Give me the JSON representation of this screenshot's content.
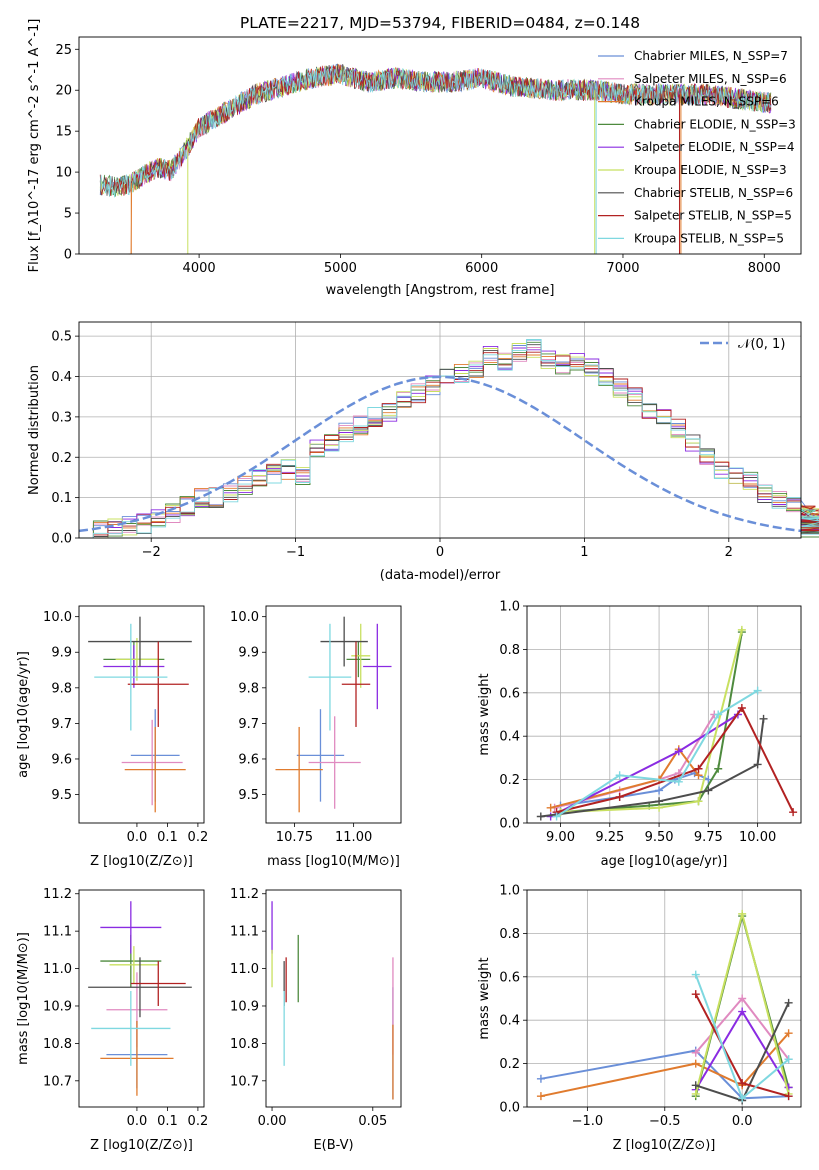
{
  "chart_data": [
    {
      "type": "line",
      "title": "PLATE=2217, MJD=53794, FIBERID=0484, z=0.148",
      "xlabel": "wavelength [Angstrom, rest frame]",
      "ylabel": "Flux [f_λ10^-17 erg cm^-2 s^-1 A^-1]",
      "xlim": [
        3150,
        8260
      ],
      "ylim": [
        0,
        26.5
      ],
      "xticks": [
        "4000",
        "5000",
        "6000",
        "7000",
        "8000"
      ],
      "yticks": [
        "0",
        "5",
        "10",
        "15",
        "20",
        "25"
      ],
      "legend_position": "right",
      "spectrum_envelope": {
        "x": [
          3300,
          3400,
          3500,
          3600,
          3700,
          3800,
          3900,
          4000,
          4200,
          4400,
          4600,
          4800,
          5000,
          5200,
          5400,
          5600,
          5800,
          6000,
          6200,
          6500,
          6800,
          7000,
          7300,
          7600,
          7800,
          8000
        ],
        "y": [
          8.5,
          8.2,
          8.5,
          9.5,
          10.5,
          10.2,
          12.5,
          15.5,
          17.5,
          19.5,
          20.5,
          21.5,
          22,
          21,
          21.5,
          21,
          21,
          21.5,
          20.5,
          20,
          20,
          19.5,
          19.5,
          19.5,
          19,
          18.5
        ]
      },
      "series": [
        {
          "name": "Chabrier MILES, N_SSP=7",
          "color": "#6a8fd8"
        },
        {
          "name": "Salpeter MILES, N_SSP=6",
          "color": "#e08ac0"
        },
        {
          "name": "Kroupa MILES, N_SSP=6",
          "color": "#e07b2e"
        },
        {
          "name": "Chabrier ELODIE, N_SSP=3",
          "color": "#4e8a3e"
        },
        {
          "name": "Salpeter ELODIE, N_SSP=4",
          "color": "#8a2be2"
        },
        {
          "name": "Kroupa ELODIE, N_SSP=3",
          "color": "#c8e060"
        },
        {
          "name": "Chabrier STELIB, N_SSP=6",
          "color": "#4d4d4d"
        },
        {
          "name": "Salpeter STELIB, N_SSP=5",
          "color": "#b22222"
        },
        {
          "name": "Kroupa STELIB, N_SSP=5",
          "color": "#7fd8e0"
        }
      ]
    },
    {
      "type": "line",
      "xlabel": "(data-model)/error",
      "ylabel": "Normed distribution",
      "xlim": [
        -2.5,
        2.5
      ],
      "ylim": [
        0,
        0.535
      ],
      "xticks": [
        "−2",
        "−1",
        "0",
        "1",
        "2"
      ],
      "yticks": [
        "0.0",
        "0.1",
        "0.2",
        "0.3",
        "0.4",
        "0.5"
      ],
      "grid": true,
      "legend": "𝒩(0, 1)",
      "legend_position": "top-right",
      "reference_curve": {
        "name": "𝒩(0, 1)",
        "mean": 0,
        "sigma": 1,
        "color": "#6a8fd8"
      },
      "histogram_bin_width": 0.1,
      "histogram_values": [
        0.02,
        0.02,
        0.025,
        0.03,
        0.035,
        0.045,
        0.06,
        0.08,
        0.1,
        0.1,
        0.11,
        0.13,
        0.15,
        0.16,
        0.17,
        0.15,
        0.22,
        0.24,
        0.26,
        0.28,
        0.3,
        0.31,
        0.34,
        0.36,
        0.38,
        0.4,
        0.41,
        0.42,
        0.45,
        0.44,
        0.46,
        0.47,
        0.44,
        0.43,
        0.44,
        0.42,
        0.4,
        0.37,
        0.35,
        0.32,
        0.3,
        0.27,
        0.24,
        0.2,
        0.17,
        0.15,
        0.14,
        0.11,
        0.09,
        0.08,
        0.07,
        0.06,
        0.05,
        0.04,
        0.035,
        0.03,
        0.025,
        0.02
      ],
      "histogram_x_start": -2.5
    },
    {
      "type": "scatter",
      "xlabel": "Z [log10(Z/Z⊙)]",
      "ylabel": "age [log10(age/yr)]",
      "xlim": [
        -0.19,
        0.22
      ],
      "ylim": [
        9.42,
        10.03
      ],
      "xticks": [
        "0.0",
        "0.1",
        "0.2"
      ],
      "yticks": [
        "9.5",
        "9.6",
        "9.7",
        "9.8",
        "9.9",
        "10.0"
      ],
      "points": [
        {
          "series": 0,
          "x": 0.06,
          "y": 9.61,
          "xerr": 0.08,
          "yerr": 0.13
        },
        {
          "series": 1,
          "x": 0.05,
          "y": 9.59,
          "xerr": 0.1,
          "yerr": 0.12
        },
        {
          "series": 2,
          "x": 0.06,
          "y": 9.57,
          "xerr": 0.1,
          "yerr": 0.12
        },
        {
          "series": 3,
          "x": -0.01,
          "y": 9.88,
          "xerr": 0.1,
          "yerr": 0.05
        },
        {
          "series": 4,
          "x": -0.01,
          "y": 9.86,
          "xerr": 0.1,
          "yerr": 0.06
        },
        {
          "series": 5,
          "x": 0.0,
          "y": 9.88,
          "xerr": 0.07,
          "yerr": 0.06
        },
        {
          "series": 6,
          "x": 0.01,
          "y": 9.93,
          "xerr": 0.17,
          "yerr": 0.07
        },
        {
          "series": 7,
          "x": 0.07,
          "y": 9.81,
          "xerr": 0.1,
          "yerr": 0.12
        },
        {
          "series": 8,
          "x": -0.02,
          "y": 9.83,
          "xerr": 0.12,
          "yerr": 0.15
        }
      ]
    },
    {
      "type": "scatter",
      "xlabel": "mass [log10(M/M⊙)]",
      "ylabel": "",
      "xlim": [
        10.63,
        11.2
      ],
      "ylim": [
        9.42,
        10.03
      ],
      "xticks": [
        "10.75",
        "11.00"
      ],
      "yticks": [
        "9.5",
        "9.6",
        "9.7",
        "9.8",
        "9.9",
        "10.0"
      ],
      "points": [
        {
          "series": 0,
          "x": 10.86,
          "y": 9.61,
          "xerr": 0.1,
          "yerr": 0.13
        },
        {
          "series": 1,
          "x": 10.92,
          "y": 9.59,
          "xerr": 0.11,
          "yerr": 0.13
        },
        {
          "series": 2,
          "x": 10.77,
          "y": 9.57,
          "xerr": 0.1,
          "yerr": 0.12
        },
        {
          "series": 3,
          "x": 11.02,
          "y": 9.88,
          "xerr": 0.05,
          "yerr": 0.05
        },
        {
          "series": 4,
          "x": 11.1,
          "y": 9.86,
          "xerr": 0.06,
          "yerr": 0.12
        },
        {
          "series": 5,
          "x": 11.03,
          "y": 9.89,
          "xerr": 0.04,
          "yerr": 0.09
        },
        {
          "series": 6,
          "x": 10.96,
          "y": 9.93,
          "xerr": 0.1,
          "yerr": 0.07
        },
        {
          "series": 7,
          "x": 11.01,
          "y": 9.81,
          "xerr": 0.06,
          "yerr": 0.12
        },
        {
          "series": 8,
          "x": 10.9,
          "y": 9.83,
          "xerr": 0.09,
          "yerr": 0.15
        }
      ]
    },
    {
      "type": "line",
      "xlabel": "age [log10(age/yr)]",
      "ylabel": "mass weight",
      "xlim": [
        8.83,
        10.22
      ],
      "ylim": [
        0,
        1
      ],
      "xticks": [
        "9.00",
        "9.25",
        "9.50",
        "9.75",
        "10.00"
      ],
      "yticks": [
        "0.0",
        "0.2",
        "0.4",
        "0.6",
        "0.8",
        "1.0"
      ],
      "grid": true,
      "series": [
        {
          "series": 0,
          "x": [
            9.0,
            9.3,
            9.5,
            9.58,
            9.68,
            9.75
          ],
          "y": [
            0.08,
            0.12,
            0.15,
            0.2,
            0.23,
            0.2
          ]
        },
        {
          "series": 1,
          "x": [
            8.97,
            9.3,
            9.5,
            9.6,
            9.78
          ],
          "y": [
            0.07,
            0.15,
            0.2,
            0.23,
            0.5
          ]
        },
        {
          "series": 2,
          "x": [
            8.95,
            9.5,
            9.6,
            9.7
          ],
          "y": [
            0.07,
            0.2,
            0.34,
            0.22
          ]
        },
        {
          "series": 3,
          "x": [
            9.0,
            9.45,
            9.7,
            9.8,
            9.92
          ],
          "y": [
            0.05,
            0.08,
            0.1,
            0.25,
            0.88
          ]
        },
        {
          "series": 4,
          "x": [
            8.95,
            9.6,
            9.9
          ],
          "y": [
            0.03,
            0.33,
            0.5
          ]
        },
        {
          "series": 5,
          "x": [
            9.0,
            9.5,
            9.7,
            9.92
          ],
          "y": [
            0.05,
            0.07,
            0.1,
            0.89
          ]
        },
        {
          "series": 6,
          "x": [
            8.9,
            9.5,
            9.75,
            10.0,
            10.03
          ],
          "y": [
            0.03,
            0.1,
            0.15,
            0.27,
            0.48
          ]
        },
        {
          "series": 7,
          "x": [
            8.98,
            9.3,
            9.7,
            9.92,
            10.18
          ],
          "y": [
            0.05,
            0.12,
            0.25,
            0.53,
            0.05
          ]
        },
        {
          "series": 8,
          "x": [
            8.98,
            9.3,
            9.6,
            9.8,
            10.0
          ],
          "y": [
            0.03,
            0.22,
            0.19,
            0.5,
            0.61
          ]
        }
      ]
    },
    {
      "type": "scatter",
      "xlabel": "Z [log10(Z/Z⊙)]",
      "ylabel": "mass [log10(M/M⊙)]",
      "xlim": [
        -0.19,
        0.22
      ],
      "ylim": [
        10.63,
        11.21
      ],
      "xticks": [
        "0.0",
        "0.1",
        "0.2"
      ],
      "yticks": [
        "10.7",
        "10.8",
        "10.9",
        "11.0",
        "11.1",
        "11.2"
      ],
      "points": [
        {
          "series": 0,
          "x": 0.0,
          "y": 10.77,
          "xerr": 0.1,
          "yerr": 0.09
        },
        {
          "series": 1,
          "x": 0.0,
          "y": 10.89,
          "xerr": 0.1,
          "yerr": 0.1
        },
        {
          "series": 2,
          "x": 0.0,
          "y": 10.76,
          "xerr": 0.12,
          "yerr": 0.1
        },
        {
          "series": 3,
          "x": -0.02,
          "y": 11.02,
          "xerr": 0.1,
          "yerr": 0.07
        },
        {
          "series": 4,
          "x": -0.02,
          "y": 11.11,
          "xerr": 0.1,
          "yerr": 0.07
        },
        {
          "series": 5,
          "x": -0.01,
          "y": 11.01,
          "xerr": 0.08,
          "yerr": 0.05
        },
        {
          "series": 6,
          "x": 0.01,
          "y": 10.95,
          "xerr": 0.17,
          "yerr": 0.08
        },
        {
          "series": 7,
          "x": 0.07,
          "y": 10.96,
          "xerr": 0.09,
          "yerr": 0.06
        },
        {
          "series": 8,
          "x": -0.02,
          "y": 10.84,
          "xerr": 0.13,
          "yerr": 0.1
        }
      ]
    },
    {
      "type": "scatter",
      "xlabel": "E(B-V)",
      "ylabel": "",
      "xlim": [
        -0.003,
        0.064
      ],
      "ylim": [
        10.63,
        11.21
      ],
      "xticks": [
        "0.00",
        "0.05"
      ],
      "yticks": [
        "10.7",
        "10.8",
        "10.9",
        "11.0",
        "11.1",
        "11.2"
      ],
      "points": [
        {
          "series": 0,
          "x": 0.06,
          "y": 10.8,
          "yerr": 0.15
        },
        {
          "series": 1,
          "x": 0.06,
          "y": 10.9,
          "yerr": 0.13
        },
        {
          "series": 2,
          "x": 0.06,
          "y": 10.75,
          "yerr": 0.1
        },
        {
          "series": 3,
          "x": 0.013,
          "y": 11.0,
          "yerr": 0.09
        },
        {
          "series": 4,
          "x": 0.0,
          "y": 11.11,
          "yerr": 0.07
        },
        {
          "series": 5,
          "x": 0.0,
          "y": 11.0,
          "yerr": 0.05
        },
        {
          "series": 6,
          "x": 0.006,
          "y": 10.96,
          "yerr": 0.06
        },
        {
          "series": 7,
          "x": 0.007,
          "y": 10.97,
          "yerr": 0.06
        },
        {
          "series": 8,
          "x": 0.006,
          "y": 10.84,
          "yerr": 0.1
        }
      ]
    },
    {
      "type": "line",
      "xlabel": "Z [log10(Z/Z⊙)]",
      "ylabel": "mass weight",
      "xlim": [
        -1.39,
        0.38
      ],
      "ylim": [
        0,
        1
      ],
      "xticks": [
        "−1.0",
        "−0.5",
        "0.0"
      ],
      "yticks": [
        "0.0",
        "0.2",
        "0.4",
        "0.6",
        "0.8",
        "1.0"
      ],
      "grid": true,
      "series": [
        {
          "series": 0,
          "x": [
            -1.3,
            -0.3,
            0.0,
            0.3
          ],
          "y": [
            0.13,
            0.26,
            0.04,
            0.05
          ]
        },
        {
          "series": 1,
          "x": [
            -0.3,
            0.0,
            0.3
          ],
          "y": [
            0.25,
            0.5,
            0.22
          ]
        },
        {
          "series": 2,
          "x": [
            -1.3,
            -0.3,
            0.0,
            0.3
          ],
          "y": [
            0.05,
            0.2,
            0.1,
            0.34
          ]
        },
        {
          "series": 3,
          "x": [
            -0.3,
            0.0,
            0.3
          ],
          "y": [
            0.05,
            0.88,
            0.09
          ]
        },
        {
          "series": 4,
          "x": [
            -0.3,
            0.0,
            0.3
          ],
          "y": [
            0.08,
            0.44,
            0.09
          ]
        },
        {
          "series": 5,
          "x": [
            -0.3,
            0.0,
            0.3
          ],
          "y": [
            0.06,
            0.89,
            0.06
          ]
        },
        {
          "series": 6,
          "x": [
            -0.3,
            0.0,
            0.3
          ],
          "y": [
            0.1,
            0.03,
            0.48
          ]
        },
        {
          "series": 7,
          "x": [
            -0.3,
            0.0,
            0.3
          ],
          "y": [
            0.52,
            0.11,
            0.05
          ]
        },
        {
          "series": 8,
          "x": [
            -0.3,
            0.0,
            0.3
          ],
          "y": [
            0.61,
            0.04,
            0.22
          ]
        }
      ]
    }
  ]
}
